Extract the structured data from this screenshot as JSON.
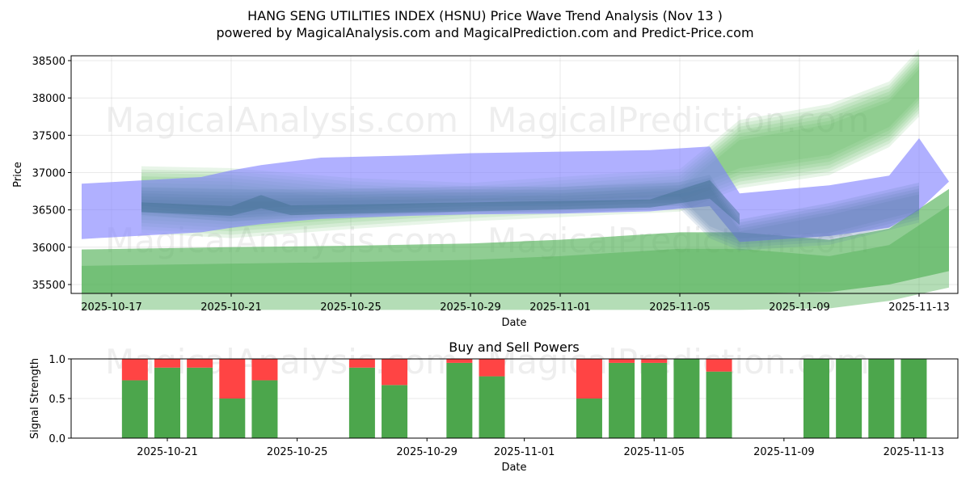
{
  "header": {
    "title": "HANG SENG UTILITIES INDEX (HSNU) Price Wave Trend Analysis (Nov 13 )",
    "subtitle": "powered by MagicalAnalysis.com and MagicalPrediction.com and Predict-Price.com"
  },
  "watermarks": [
    "MagicalAnalysis.com",
    "MagicalPrediction.com"
  ],
  "colors": {
    "blue_band": "#8080ff",
    "green_band": "#4caf50",
    "buy": "#4ca64c",
    "sell": "#ff4444"
  },
  "chart_data": [
    {
      "type": "area",
      "title": "",
      "xlabel": "Date",
      "ylabel": "Price",
      "ylim": [
        35380,
        38560
      ],
      "yticks": [
        35500,
        36000,
        36500,
        37000,
        37500,
        38000,
        38500
      ],
      "xticks": [
        "2025-10-17",
        "2025-10-21",
        "2025-10-25",
        "2025-10-29",
        "2025-11-01",
        "2025-11-05",
        "2025-11-09",
        "2025-11-13"
      ],
      "grid": true,
      "series": [
        {
          "name": "blue-wave-band-upper",
          "color": "#8080ff",
          "x": [
            "2025-10-16",
            "2025-10-20",
            "2025-10-21",
            "2025-10-22",
            "2025-10-24",
            "2025-10-27",
            "2025-10-29",
            "2025-11-01",
            "2025-11-04",
            "2025-11-06",
            "2025-11-07",
            "2025-11-10",
            "2025-11-12",
            "2025-11-13",
            "2025-11-14"
          ],
          "upper": [
            36850,
            36940,
            37030,
            37100,
            37200,
            37230,
            37260,
            37280,
            37300,
            37350,
            36720,
            36830,
            36960,
            37460,
            36880
          ],
          "lower": [
            36110,
            36200,
            36260,
            36310,
            36380,
            36420,
            36440,
            36450,
            36480,
            36550,
            36070,
            36150,
            36260,
            36500,
            36880
          ]
        },
        {
          "name": "blue-wave-band-lower",
          "color": "#5a7fa8",
          "x": [
            "2025-10-18",
            "2025-10-21",
            "2025-10-24",
            "2025-10-29",
            "2025-11-01",
            "2025-11-05",
            "2025-11-06",
            "2025-11-07",
            "2025-11-10",
            "2025-11-13"
          ],
          "upper": [
            36720,
            36680,
            36700,
            36750,
            36720,
            36780,
            36900,
            36300,
            36500,
            36780
          ],
          "lower": [
            36500,
            36420,
            36500,
            36560,
            36540,
            36580,
            36200,
            36050,
            36120,
            36400
          ]
        },
        {
          "name": "green-wave-band-top",
          "color": "#4caf50",
          "x": [
            "2025-10-18",
            "2025-10-21",
            "2025-10-25",
            "2025-10-29",
            "2025-11-05",
            "2025-11-07",
            "2025-11-10",
            "2025-11-12",
            "2025-11-13"
          ],
          "upper": [
            36950,
            36900,
            36800,
            36750,
            36900,
            37550,
            37800,
            38100,
            38500
          ],
          "lower": [
            36300,
            36250,
            36400,
            36500,
            36600,
            36900,
            37100,
            37500,
            37900
          ]
        },
        {
          "name": "green-wave-band-bottom",
          "color": "#4caf50",
          "x": [
            "2025-10-16",
            "2025-10-21",
            "2025-10-25",
            "2025-10-29",
            "2025-11-01",
            "2025-11-05",
            "2025-11-07",
            "2025-11-10",
            "2025-11-12",
            "2025-11-14"
          ],
          "upper": [
            35970,
            36000,
            36020,
            36050,
            36100,
            36200,
            36200,
            36100,
            36250,
            36780
          ],
          "lower": [
            35380,
            35380,
            35380,
            35380,
            35380,
            35380,
            35380,
            35400,
            35500,
            35680
          ]
        }
      ]
    },
    {
      "type": "bar",
      "title": "Buy and Sell Powers",
      "xlabel": "Date",
      "ylabel": "Signal Strength",
      "ylim": [
        0,
        1
      ],
      "yticks": [
        "0.0",
        "0.5",
        "1.0"
      ],
      "xticks": [
        "2025-10-21",
        "2025-10-25",
        "2025-10-29",
        "2025-11-01",
        "2025-11-05",
        "2025-11-09",
        "2025-11-13"
      ],
      "categories": [
        "2025-10-20",
        "2025-10-21",
        "2025-10-22",
        "2025-10-23",
        "2025-10-24",
        "2025-10-27",
        "2025-10-28",
        "2025-10-30",
        "2025-10-31",
        "2025-11-03",
        "2025-11-04",
        "2025-11-05",
        "2025-11-06",
        "2025-11-07",
        "2025-11-10",
        "2025-11-11",
        "2025-11-12",
        "2025-11-13"
      ],
      "series": [
        {
          "name": "Buy",
          "color": "#4ca64c",
          "values": [
            0.73,
            0.89,
            0.89,
            0.5,
            0.73,
            0.89,
            0.67,
            0.95,
            0.78,
            0.5,
            0.95,
            0.95,
            1.0,
            0.84,
            1.0,
            1.0,
            1.0,
            1.0
          ]
        },
        {
          "name": "Sell",
          "color": "#ff4444",
          "values": [
            0.27,
            0.11,
            0.11,
            0.5,
            0.27,
            0.11,
            0.33,
            0.05,
            0.22,
            0.5,
            0.05,
            0.05,
            0.0,
            0.16,
            0.0,
            0.0,
            0.0,
            0.0
          ]
        }
      ]
    }
  ]
}
